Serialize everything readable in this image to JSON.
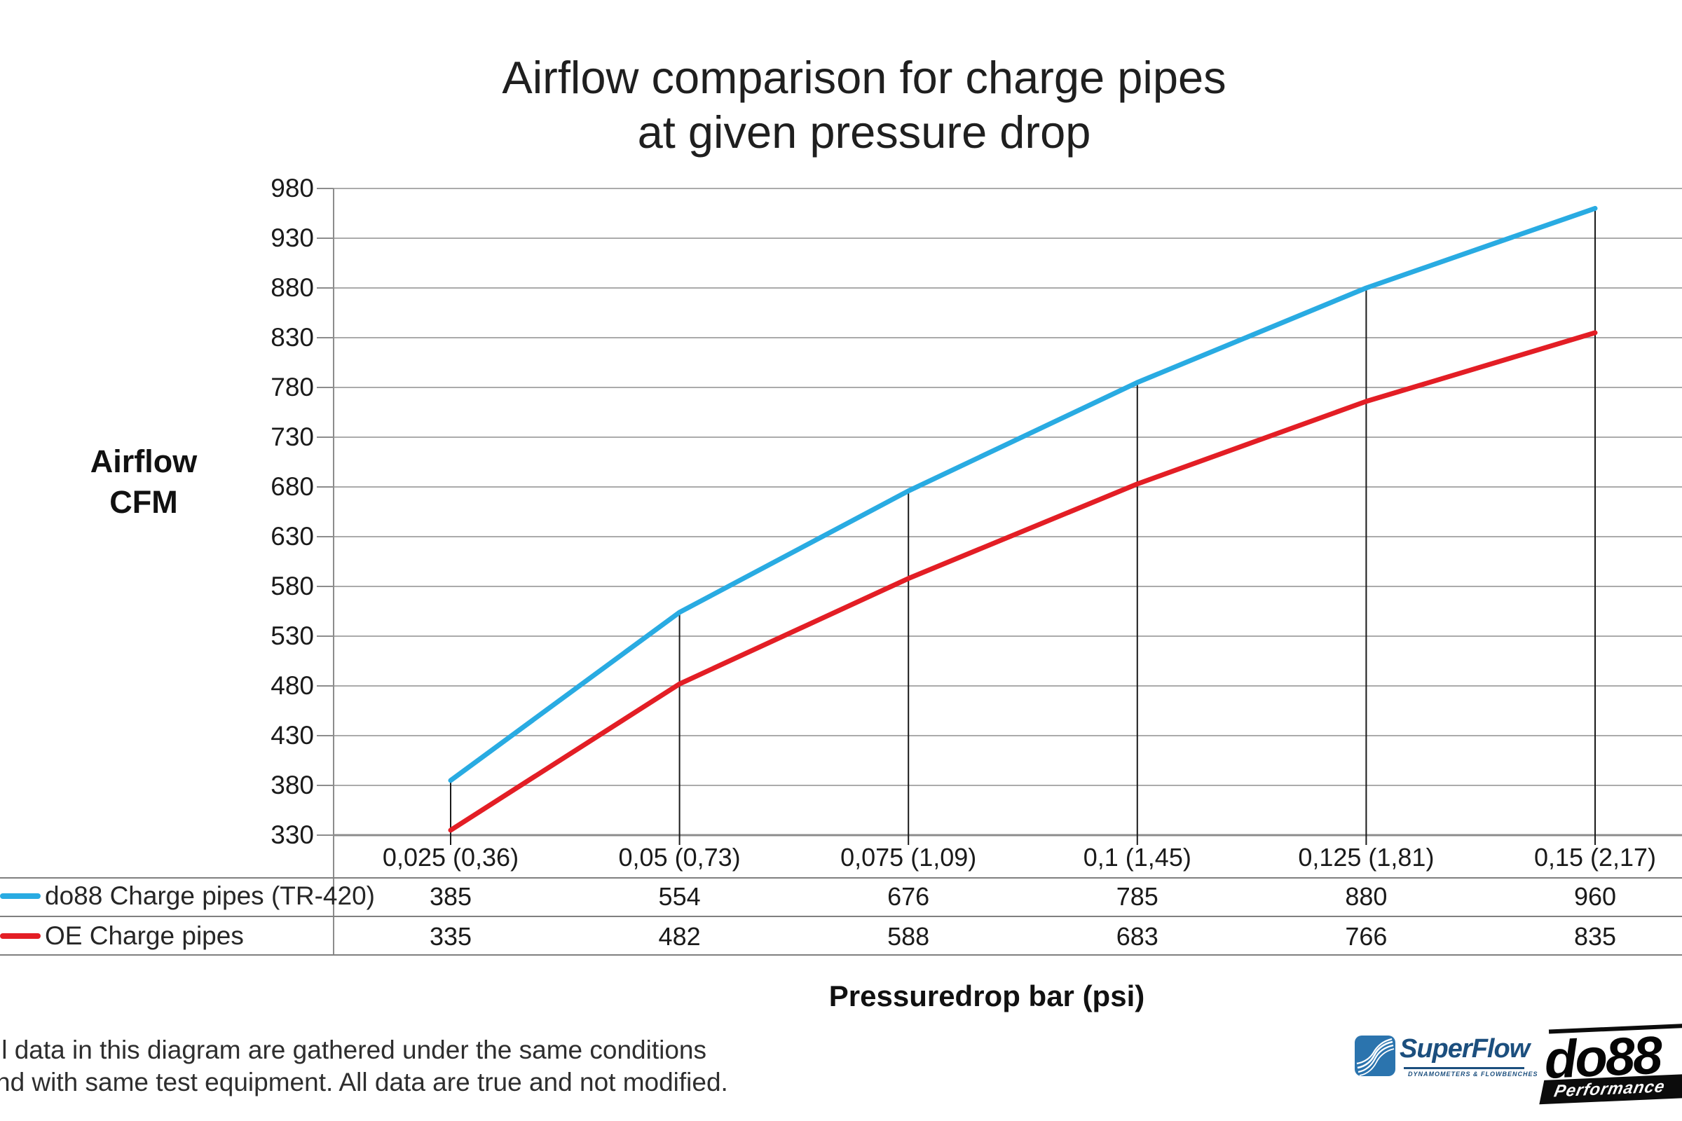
{
  "title": {
    "line1": "Airflow comparison for charge pipes",
    "line2": "at given pressure drop"
  },
  "y_axis": {
    "label_line1": "Airflow",
    "label_line2": "CFM"
  },
  "x_axis": {
    "label": "Pressuredrop bar (psi)"
  },
  "chart_data": {
    "type": "line",
    "title": "Airflow comparison for charge pipes at given pressure drop",
    "xlabel": "Pressuredrop bar (psi)",
    "ylabel": "Airflow CFM",
    "categories": [
      "0,025 (0,36)",
      "0,05 (0,73)",
      "0,075 (1,09)",
      "0,1 (1,45)",
      "0,125 (1,81)",
      "0,15 (2,17)"
    ],
    "series": [
      {
        "name": "do88 Charge pipes (TR-420)",
        "color": "#29ABE2",
        "values": [
          385,
          554,
          676,
          785,
          880,
          960
        ]
      },
      {
        "name": "OE Charge pipes",
        "color": "#E31E25",
        "values": [
          335,
          482,
          588,
          683,
          766,
          835
        ]
      }
    ],
    "ylim": [
      330,
      980
    ],
    "ytick_step": 50,
    "grid": true,
    "legend_position": "table-left",
    "colors": {
      "gridline": "#ABABAB",
      "axis": "#8C8C8C",
      "table_line": "#7F7F7F",
      "drop_line": "#1A1A1A",
      "text": "#1A1A1A"
    }
  },
  "footer": {
    "line1": "ll data in this diagram are gathered under the same conditions",
    "line2": "nd with same test equipment. All data are true and not modified."
  },
  "logos": {
    "superflow": {
      "text": "SuperFlow",
      "subtext": "DYNAMOMETERS & FLOWBENCHES",
      "brand_color": "#1C4F7E",
      "icon_color": "#2B74AE"
    },
    "do88": {
      "text": "do88",
      "subtext": "Performance",
      "brand_color": "#0C0C0C"
    }
  }
}
